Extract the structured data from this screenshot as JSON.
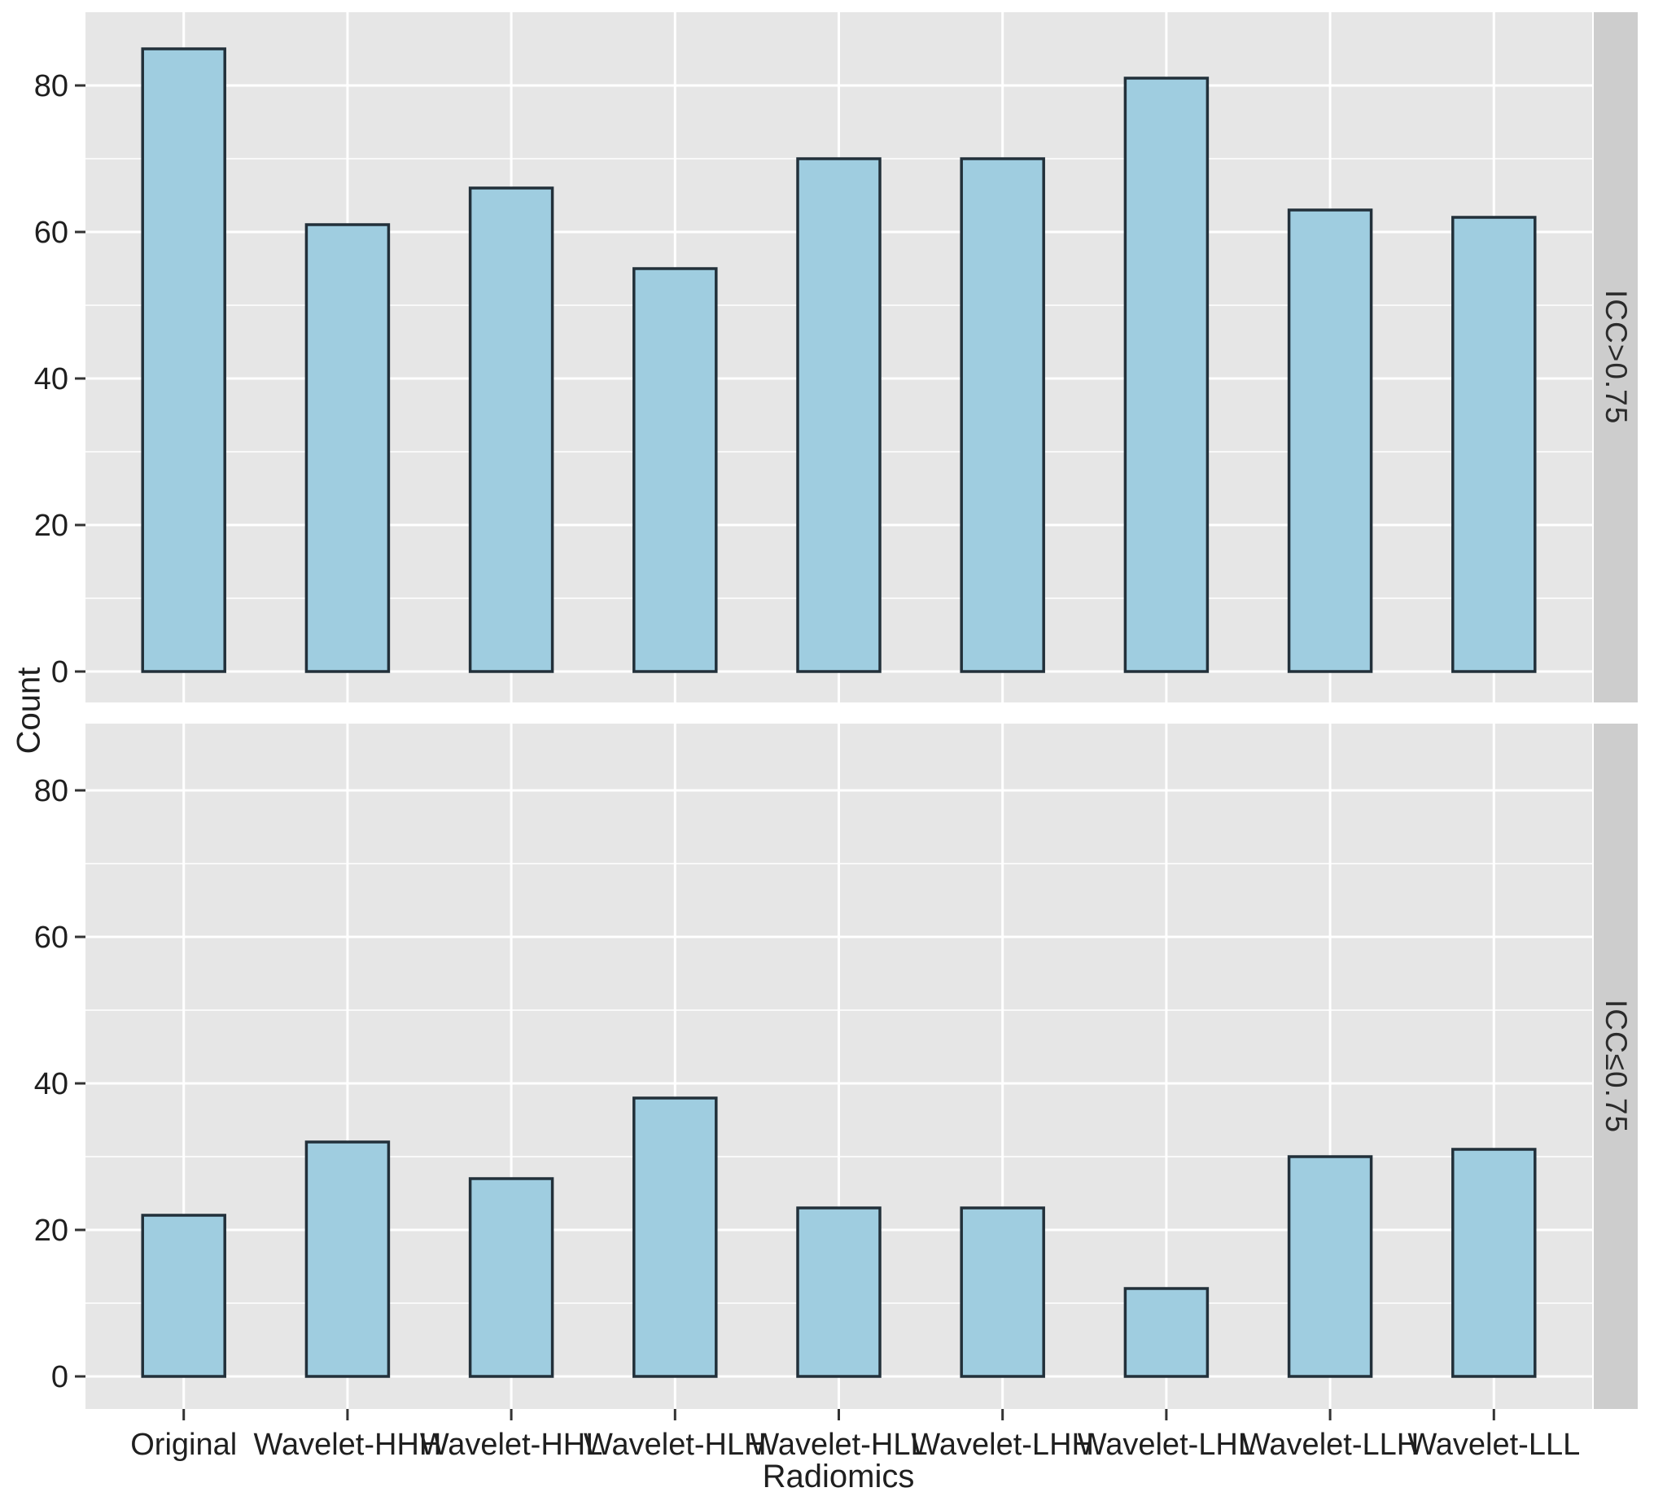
{
  "figure": {
    "y_axis_title": "Count",
    "x_axis_title": "Radiomics"
  },
  "chart_data": {
    "type": "bar",
    "title": "",
    "xlabel": "Radiomics",
    "ylabel": "Count",
    "categories": [
      "Original",
      "Wavelet-HHH",
      "Wavelet-HHL",
      "Wavelet-HLH",
      "Wavelet-HLL",
      "Wavelet-LHH",
      "Wavelet-LHL",
      "Wavelet-LLH",
      "Wavelet-LLL"
    ],
    "facets": [
      {
        "label": "ICC>0.75",
        "values": [
          85,
          61,
          66,
          55,
          70,
          70,
          81,
          63,
          62
        ]
      },
      {
        "label": "ICC≤0.75",
        "values": [
          22,
          32,
          27,
          38,
          23,
          23,
          12,
          30,
          31
        ]
      }
    ],
    "yticks": [
      0,
      20,
      40,
      60,
      80
    ],
    "ylim": [
      0,
      90
    ],
    "legend": "none",
    "grid": {
      "major": true,
      "minor": true
    },
    "facet_strip_position": "right",
    "colors": {
      "bar_fill": "#9fcde0",
      "bar_stroke": "#22303a",
      "panel_bg": "#e6e6e6",
      "strip_bg": "#cdcdcd",
      "grid": "#ffffff",
      "text": "#1f1f1f",
      "tick": "#333333"
    }
  }
}
